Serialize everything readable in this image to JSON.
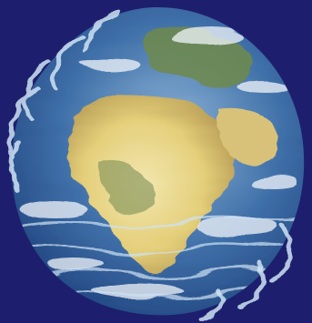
{
  "image": {
    "subject": "earth-globe",
    "effect": "ripple-distortion"
  },
  "colors": {
    "background": "#1d1f6e",
    "ocean_dark": "#1c3f7a",
    "ocean_mid": "#3f6fa8",
    "ocean_light": "#8fb6d8",
    "land_desert": "#e4cf7a",
    "land_light": "#f3e7b0",
    "land_green": "#6f8a4a",
    "cloud": "#f2f6fb",
    "ring_highlight": "#cfe3f4"
  }
}
